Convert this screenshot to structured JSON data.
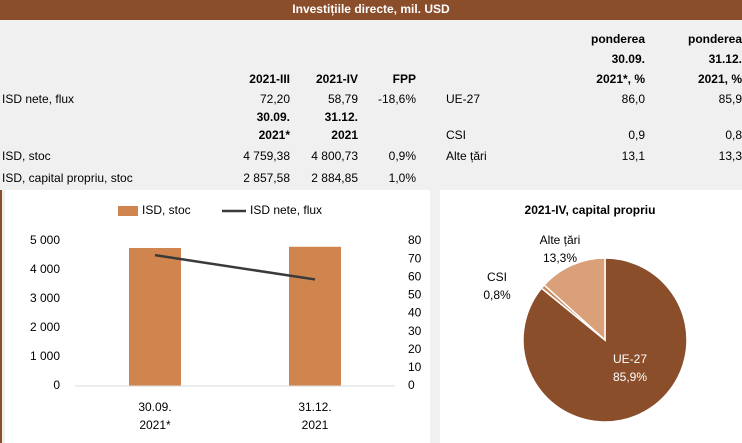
{
  "title": "Investițiile directe, mil. USD",
  "table": {
    "columns": [
      "2021-III",
      "2021-IV",
      "FPP"
    ],
    "share_columns": [
      [
        "ponderea",
        "30.09.",
        "2021*, %"
      ],
      [
        "ponderea",
        "31.12.",
        "2021, %"
      ]
    ],
    "rows": [
      {
        "label": "ISD nete, flux",
        "cells": [
          "72,20",
          "58,79",
          "-18,6%"
        ]
      },
      {
        "cells": [
          [
            "30.09.",
            "2021*"
          ],
          [
            "31.12.",
            "2021"
          ]
        ]
      },
      {
        "label": "ISD, stoc",
        "cells": [
          "4 759,38",
          "4 800,73",
          "0,9%"
        ]
      },
      {
        "label": "ISD, capital propriu, stoc",
        "cells": [
          "2 857,58",
          "2 884,85",
          "1,0%"
        ]
      }
    ],
    "share_rows": [
      {
        "label": "UE-27",
        "cells": [
          "86,0",
          "85,9"
        ]
      },
      {
        "label": "CSI",
        "cells": [
          "0,9",
          "0,8"
        ]
      },
      {
        "label": "Alte țări",
        "cells": [
          "13,1",
          "13,3"
        ]
      }
    ]
  },
  "chart_data": [
    {
      "type": "bar_line",
      "categories": [
        "30.09. 2021*",
        "31.12. 2021"
      ],
      "series": [
        {
          "name": "ISD, stoc",
          "color": "#d0844e",
          "values": [
            4759.38,
            4800.73
          ]
        },
        {
          "name": "ISD nete, flux",
          "color": "#3a3a3a",
          "values": [
            72.2,
            58.79
          ],
          "axis": "y2"
        }
      ],
      "ylim": [
        0,
        5000
      ],
      "yticks": [
        0,
        {
          "value": 1000,
          "label": "1 000"
        },
        {
          "value": 2000,
          "label": "2 000"
        },
        {
          "value": 3000,
          "label": "3 000"
        },
        {
          "value": 4000,
          "label": "4 000"
        },
        {
          "value": 5000,
          "label": "5 000"
        }
      ],
      "y2lim": [
        0,
        80
      ],
      "y2ticks": [
        0,
        10,
        20,
        30,
        40,
        50,
        60,
        70,
        80
      ],
      "legend": "top"
    },
    {
      "type": "pie",
      "title": "2021-IV, capital propriu",
      "categories": [
        "UE-27",
        "CSI",
        "Alte țări"
      ],
      "values": [
        85.9,
        0.8,
        13.3
      ],
      "value_labels": [
        "85,9%",
        "0,8%",
        "13,3%"
      ],
      "colors": [
        "#8b4e2b",
        "#c98a5e",
        "#d9a07a"
      ]
    }
  ]
}
